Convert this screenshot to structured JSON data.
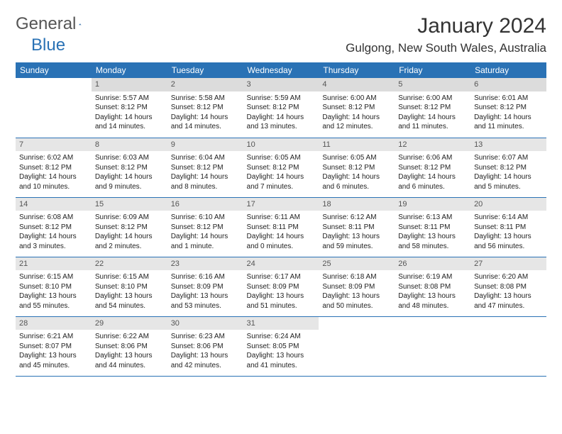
{
  "logo": {
    "text1": "General",
    "text2": "Blue"
  },
  "title": "January 2024",
  "location": "Gulgong, New South Wales, Australia",
  "colors": {
    "header_bg": "#2a72b5",
    "header_text": "#ffffff",
    "daynum_bg": "#e6e6e6",
    "border": "#2a72b5"
  },
  "weekdays": [
    "Sunday",
    "Monday",
    "Tuesday",
    "Wednesday",
    "Thursday",
    "Friday",
    "Saturday"
  ],
  "weeks": [
    [
      {
        "num": "",
        "lines": [
          "",
          "",
          "",
          ""
        ]
      },
      {
        "num": "1",
        "lines": [
          "Sunrise: 5:57 AM",
          "Sunset: 8:12 PM",
          "Daylight: 14 hours",
          "and 14 minutes."
        ]
      },
      {
        "num": "2",
        "lines": [
          "Sunrise: 5:58 AM",
          "Sunset: 8:12 PM",
          "Daylight: 14 hours",
          "and 14 minutes."
        ]
      },
      {
        "num": "3",
        "lines": [
          "Sunrise: 5:59 AM",
          "Sunset: 8:12 PM",
          "Daylight: 14 hours",
          "and 13 minutes."
        ]
      },
      {
        "num": "4",
        "lines": [
          "Sunrise: 6:00 AM",
          "Sunset: 8:12 PM",
          "Daylight: 14 hours",
          "and 12 minutes."
        ]
      },
      {
        "num": "5",
        "lines": [
          "Sunrise: 6:00 AM",
          "Sunset: 8:12 PM",
          "Daylight: 14 hours",
          "and 11 minutes."
        ]
      },
      {
        "num": "6",
        "lines": [
          "Sunrise: 6:01 AM",
          "Sunset: 8:12 PM",
          "Daylight: 14 hours",
          "and 11 minutes."
        ]
      }
    ],
    [
      {
        "num": "7",
        "lines": [
          "Sunrise: 6:02 AM",
          "Sunset: 8:12 PM",
          "Daylight: 14 hours",
          "and 10 minutes."
        ]
      },
      {
        "num": "8",
        "lines": [
          "Sunrise: 6:03 AM",
          "Sunset: 8:12 PM",
          "Daylight: 14 hours",
          "and 9 minutes."
        ]
      },
      {
        "num": "9",
        "lines": [
          "Sunrise: 6:04 AM",
          "Sunset: 8:12 PM",
          "Daylight: 14 hours",
          "and 8 minutes."
        ]
      },
      {
        "num": "10",
        "lines": [
          "Sunrise: 6:05 AM",
          "Sunset: 8:12 PM",
          "Daylight: 14 hours",
          "and 7 minutes."
        ]
      },
      {
        "num": "11",
        "lines": [
          "Sunrise: 6:05 AM",
          "Sunset: 8:12 PM",
          "Daylight: 14 hours",
          "and 6 minutes."
        ]
      },
      {
        "num": "12",
        "lines": [
          "Sunrise: 6:06 AM",
          "Sunset: 8:12 PM",
          "Daylight: 14 hours",
          "and 6 minutes."
        ]
      },
      {
        "num": "13",
        "lines": [
          "Sunrise: 6:07 AM",
          "Sunset: 8:12 PM",
          "Daylight: 14 hours",
          "and 5 minutes."
        ]
      }
    ],
    [
      {
        "num": "14",
        "lines": [
          "Sunrise: 6:08 AM",
          "Sunset: 8:12 PM",
          "Daylight: 14 hours",
          "and 3 minutes."
        ]
      },
      {
        "num": "15",
        "lines": [
          "Sunrise: 6:09 AM",
          "Sunset: 8:12 PM",
          "Daylight: 14 hours",
          "and 2 minutes."
        ]
      },
      {
        "num": "16",
        "lines": [
          "Sunrise: 6:10 AM",
          "Sunset: 8:12 PM",
          "Daylight: 14 hours",
          "and 1 minute."
        ]
      },
      {
        "num": "17",
        "lines": [
          "Sunrise: 6:11 AM",
          "Sunset: 8:11 PM",
          "Daylight: 14 hours",
          "and 0 minutes."
        ]
      },
      {
        "num": "18",
        "lines": [
          "Sunrise: 6:12 AM",
          "Sunset: 8:11 PM",
          "Daylight: 13 hours",
          "and 59 minutes."
        ]
      },
      {
        "num": "19",
        "lines": [
          "Sunrise: 6:13 AM",
          "Sunset: 8:11 PM",
          "Daylight: 13 hours",
          "and 58 minutes."
        ]
      },
      {
        "num": "20",
        "lines": [
          "Sunrise: 6:14 AM",
          "Sunset: 8:11 PM",
          "Daylight: 13 hours",
          "and 56 minutes."
        ]
      }
    ],
    [
      {
        "num": "21",
        "lines": [
          "Sunrise: 6:15 AM",
          "Sunset: 8:10 PM",
          "Daylight: 13 hours",
          "and 55 minutes."
        ]
      },
      {
        "num": "22",
        "lines": [
          "Sunrise: 6:15 AM",
          "Sunset: 8:10 PM",
          "Daylight: 13 hours",
          "and 54 minutes."
        ]
      },
      {
        "num": "23",
        "lines": [
          "Sunrise: 6:16 AM",
          "Sunset: 8:09 PM",
          "Daylight: 13 hours",
          "and 53 minutes."
        ]
      },
      {
        "num": "24",
        "lines": [
          "Sunrise: 6:17 AM",
          "Sunset: 8:09 PM",
          "Daylight: 13 hours",
          "and 51 minutes."
        ]
      },
      {
        "num": "25",
        "lines": [
          "Sunrise: 6:18 AM",
          "Sunset: 8:09 PM",
          "Daylight: 13 hours",
          "and 50 minutes."
        ]
      },
      {
        "num": "26",
        "lines": [
          "Sunrise: 6:19 AM",
          "Sunset: 8:08 PM",
          "Daylight: 13 hours",
          "and 48 minutes."
        ]
      },
      {
        "num": "27",
        "lines": [
          "Sunrise: 6:20 AM",
          "Sunset: 8:08 PM",
          "Daylight: 13 hours",
          "and 47 minutes."
        ]
      }
    ],
    [
      {
        "num": "28",
        "lines": [
          "Sunrise: 6:21 AM",
          "Sunset: 8:07 PM",
          "Daylight: 13 hours",
          "and 45 minutes."
        ]
      },
      {
        "num": "29",
        "lines": [
          "Sunrise: 6:22 AM",
          "Sunset: 8:06 PM",
          "Daylight: 13 hours",
          "and 44 minutes."
        ]
      },
      {
        "num": "30",
        "lines": [
          "Sunrise: 6:23 AM",
          "Sunset: 8:06 PM",
          "Daylight: 13 hours",
          "and 42 minutes."
        ]
      },
      {
        "num": "31",
        "lines": [
          "Sunrise: 6:24 AM",
          "Sunset: 8:05 PM",
          "Daylight: 13 hours",
          "and 41 minutes."
        ]
      },
      {
        "num": "",
        "lines": [
          "",
          "",
          "",
          ""
        ]
      },
      {
        "num": "",
        "lines": [
          "",
          "",
          "",
          ""
        ]
      },
      {
        "num": "",
        "lines": [
          "",
          "",
          "",
          ""
        ]
      }
    ]
  ]
}
